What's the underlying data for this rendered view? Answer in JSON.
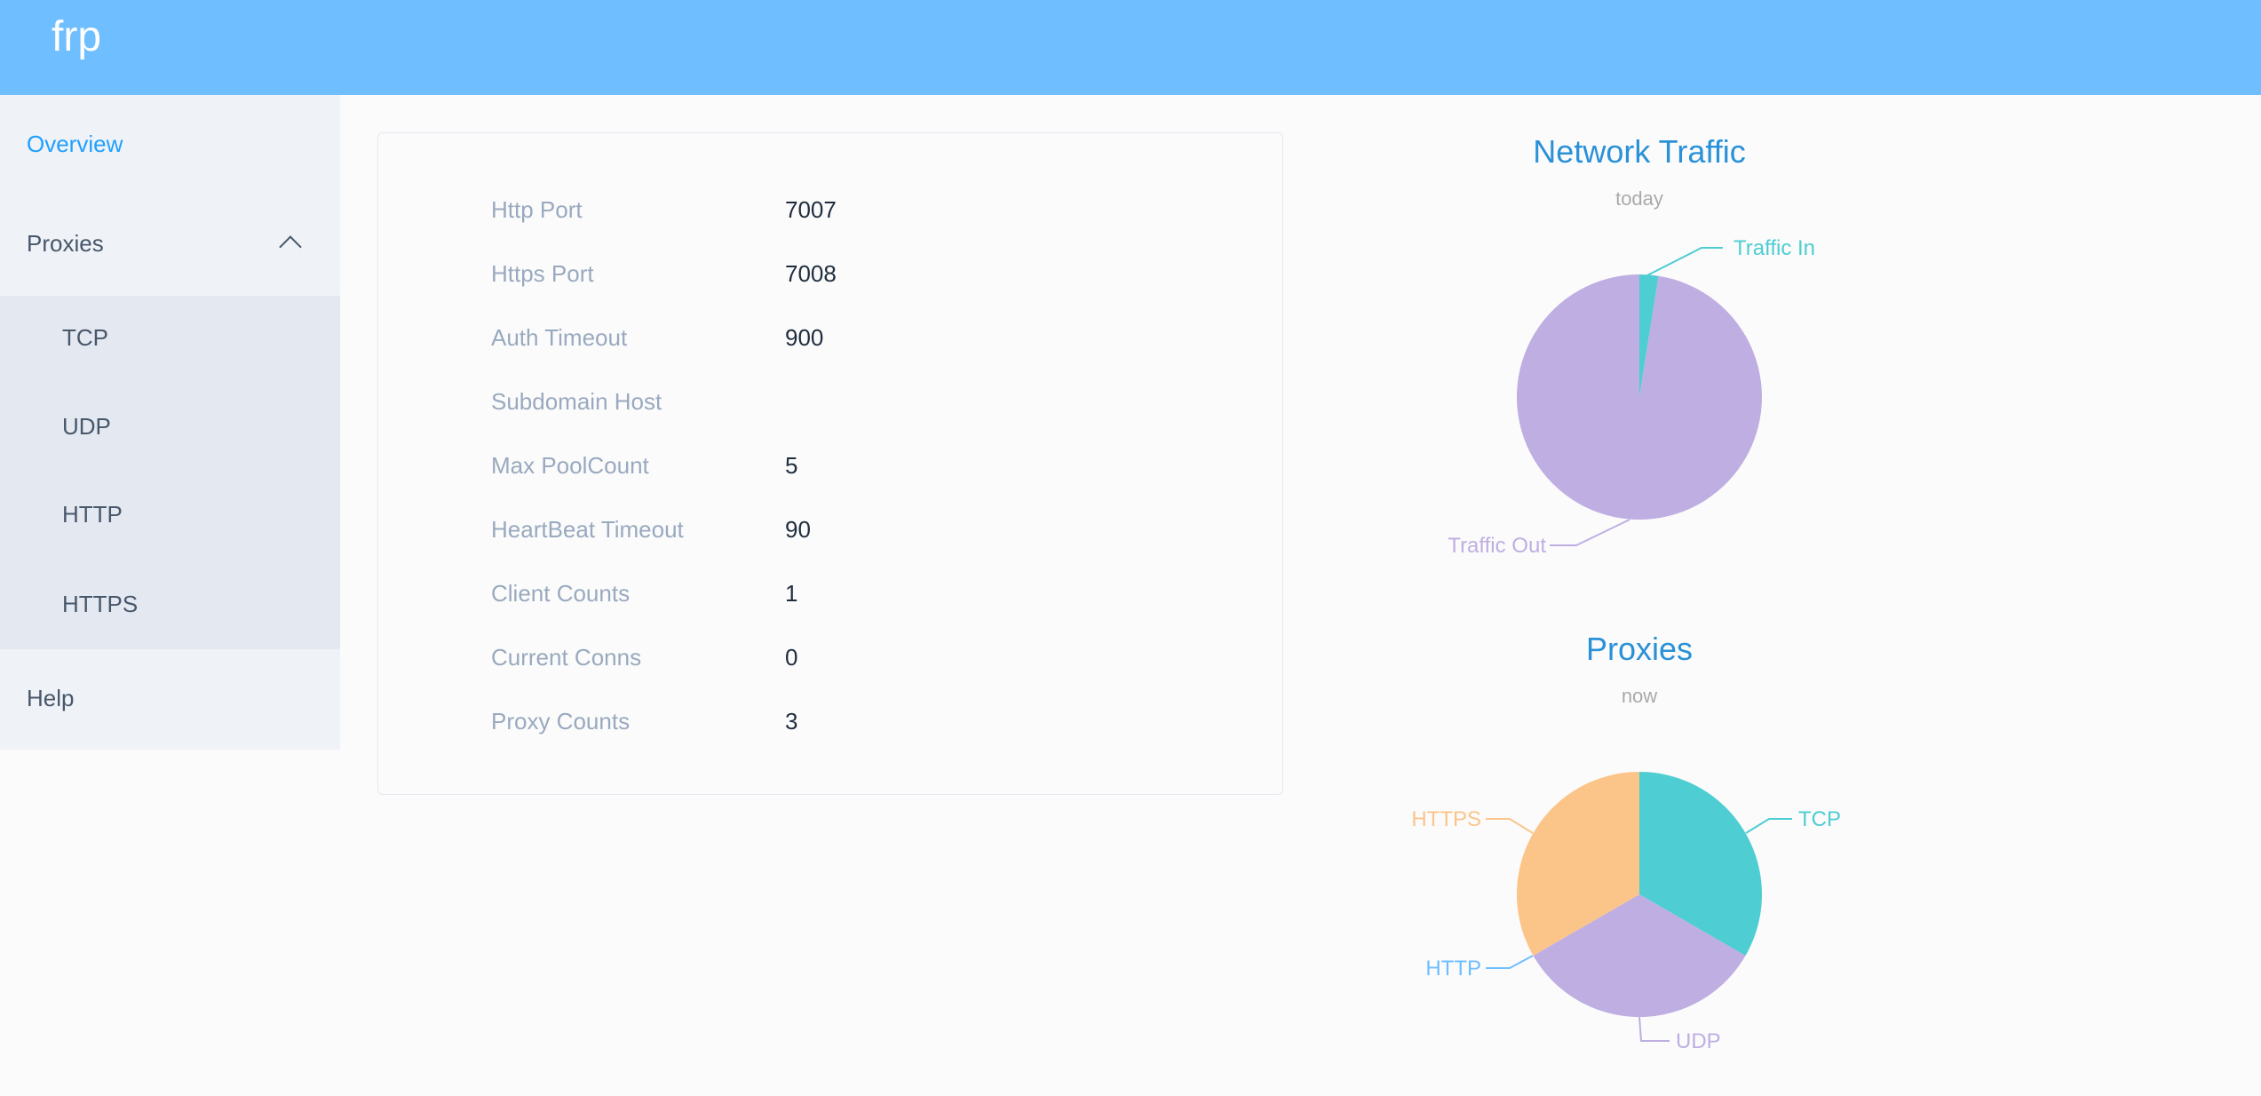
{
  "app": {
    "title": "frp"
  },
  "sidebar": {
    "items": [
      {
        "label": "Overview",
        "active": true
      },
      {
        "label": "Proxies",
        "expanded": true,
        "children": [
          {
            "label": "TCP"
          },
          {
            "label": "UDP"
          },
          {
            "label": "HTTP"
          },
          {
            "label": "HTTPS"
          }
        ]
      },
      {
        "label": "Help"
      }
    ]
  },
  "overview": {
    "rows": [
      {
        "label": "Http Port",
        "value": "7007"
      },
      {
        "label": "Https Port",
        "value": "7008"
      },
      {
        "label": "Auth Timeout",
        "value": "900"
      },
      {
        "label": "Subdomain Host",
        "value": ""
      },
      {
        "label": "Max PoolCount",
        "value": "5"
      },
      {
        "label": "HeartBeat Timeout",
        "value": "90"
      },
      {
        "label": "Client Counts",
        "value": "1"
      },
      {
        "label": "Current Conns",
        "value": "0"
      },
      {
        "label": "Proxy Counts",
        "value": "3"
      }
    ]
  },
  "chart_data": [
    {
      "type": "pie",
      "title": "Network Traffic",
      "subtitle": "today",
      "categories": [
        "Traffic In",
        "Traffic Out"
      ],
      "values": [
        2.5,
        97.5
      ],
      "unit": "percent (approx.)",
      "colors": [
        "#4ecdd2",
        "#bfaee2"
      ]
    },
    {
      "type": "pie",
      "title": "Proxies",
      "subtitle": "now",
      "categories": [
        "TCP",
        "UDP",
        "HTTP",
        "HTTPS"
      ],
      "values": [
        1,
        1,
        0,
        1
      ],
      "colors": [
        "#4ecdd2",
        "#bfaee2",
        "#6fbeff",
        "#fbc58a"
      ]
    }
  ]
}
